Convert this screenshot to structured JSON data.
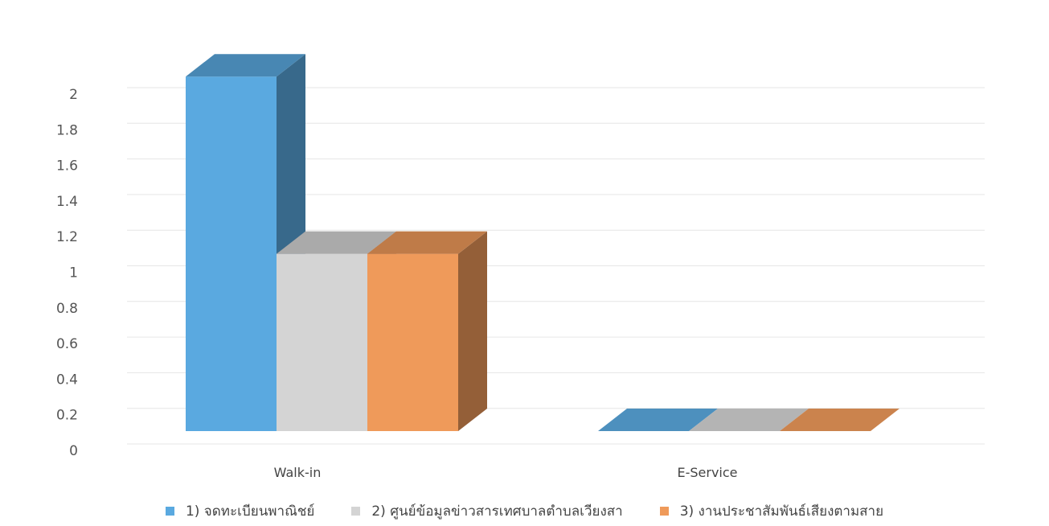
{
  "chart_data": {
    "type": "bar",
    "style": "3d-clustered-column",
    "categories": [
      "Walk-in",
      "E-Service"
    ],
    "series": [
      {
        "name": "1) จดทะเบียนพาณิชย์",
        "values": [
          2,
          0
        ],
        "color": "#5aa9e0"
      },
      {
        "name": "2) ศูนย์ข้อมูลข่าวสารเทศบาลตำบลเวียงสา",
        "values": [
          1,
          0
        ],
        "color": "#d4d4d4"
      },
      {
        "name": "3) งานประชาสัมพันธ์เสียงตามสาย",
        "values": [
          1,
          0
        ],
        "color": "#ef9a5a"
      }
    ],
    "yticks": [
      "0",
      "0.2",
      "0.4",
      "0.6",
      "0.8",
      "1",
      "1.2",
      "1.4",
      "1.6",
      "1.8",
      "2"
    ],
    "ylim": [
      0,
      2
    ],
    "grid": true,
    "legend_position": "bottom",
    "title": "",
    "xlabel": "",
    "ylabel": ""
  }
}
